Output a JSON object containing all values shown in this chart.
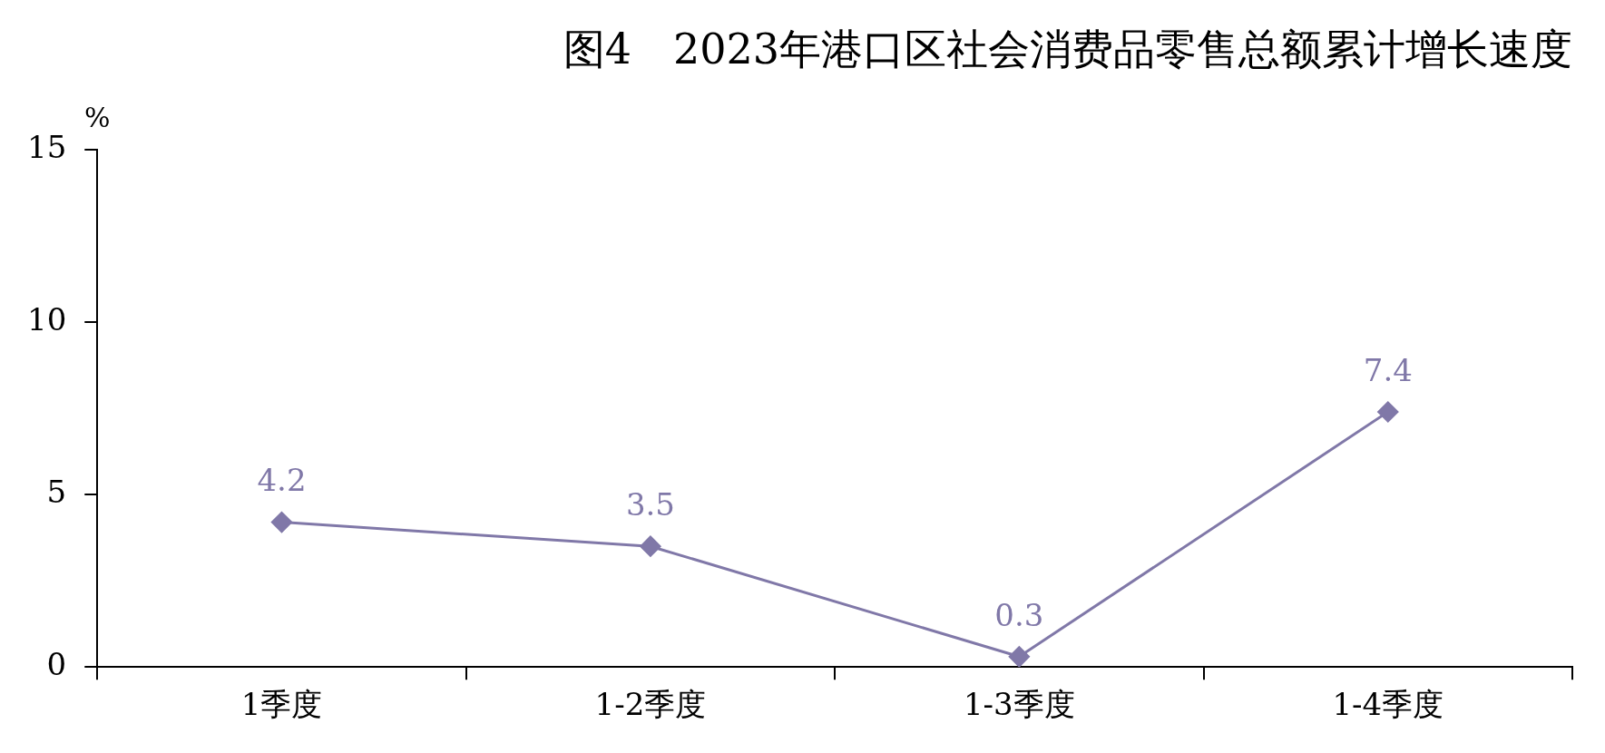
{
  "chart_data": {
    "type": "line",
    "title": "图4　2023年港口区社会消费品零售总额累计增长速度",
    "ylabel": "%",
    "categories": [
      "1季度",
      "1-2季度",
      "1-3季度",
      "1-4季度"
    ],
    "series": [
      {
        "color": "#8078a8",
        "values": [
          4.2,
          3.5,
          0.3,
          7.4
        ]
      }
    ],
    "ylim": [
      0,
      15
    ],
    "yticks": [
      0,
      5,
      10,
      15
    ],
    "grid": false,
    "legend": false,
    "marker": "diamond",
    "line_style": "solid",
    "data_labels": true
  }
}
